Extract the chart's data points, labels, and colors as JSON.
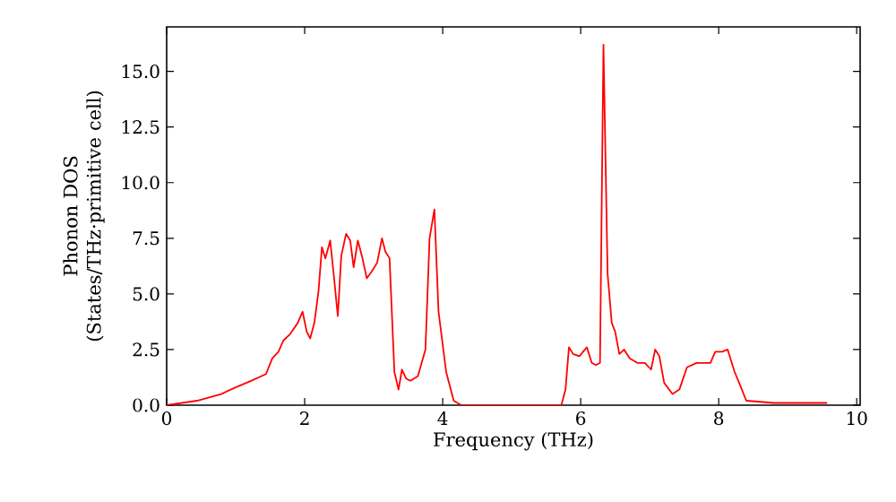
{
  "chart_data": {
    "type": "line",
    "xlabel": "Frequency (THz)",
    "ylabel": "Phonon DOS (States/THz·primitive cell)",
    "xlim": [
      0,
      10.05
    ],
    "ylim": [
      0,
      17
    ],
    "xticks": [
      0,
      2,
      4,
      6,
      8,
      10
    ],
    "yticks": [
      {
        "value": 0,
        "label": "0.0"
      },
      {
        "value": 2.5,
        "label": "2.5"
      },
      {
        "value": 5,
        "label": "5.0"
      },
      {
        "value": 7.5,
        "label": "7.5"
      },
      {
        "value": 10,
        "label": "10.0"
      },
      {
        "value": 12.5,
        "label": "12.5"
      },
      {
        "value": 15,
        "label": "15.0"
      }
    ],
    "grid": false,
    "series": [
      {
        "color": "#ff0000",
        "line_style": "solid",
        "x": [
          0,
          0.44,
          0.79,
          1.0,
          1.23,
          1.44,
          1.53,
          1.62,
          1.69,
          1.79,
          1.9,
          1.97,
          2.03,
          2.08,
          2.14,
          2.2,
          2.25,
          2.3,
          2.37,
          2.43,
          2.48,
          2.53,
          2.6,
          2.66,
          2.71,
          2.77,
          2.83,
          2.9,
          2.97,
          3.05,
          3.12,
          3.17,
          3.23,
          3.3,
          3.36,
          3.41,
          3.47,
          3.53,
          3.64,
          3.75,
          3.81,
          3.88,
          3.94,
          4.05,
          4.16,
          4.27,
          5.0,
          5.72,
          5.78,
          5.83,
          5.89,
          5.98,
          6.09,
          6.16,
          6.22,
          6.28,
          6.33,
          6.39,
          6.45,
          6.5,
          6.56,
          6.63,
          6.71,
          6.82,
          6.93,
          7.02,
          7.08,
          7.14,
          7.21,
          7.33,
          7.43,
          7.54,
          7.68,
          7.79,
          7.88,
          7.95,
          8.05,
          8.13,
          8.23,
          8.31,
          8.4,
          8.8,
          9.57
        ],
        "values": [
          0,
          0.2,
          0.5,
          0.8,
          1.1,
          1.4,
          2.1,
          2.4,
          2.9,
          3.2,
          3.7,
          4.2,
          3.3,
          3.0,
          3.7,
          5.1,
          7.1,
          6.6,
          7.4,
          5.6,
          4.0,
          6.7,
          7.7,
          7.4,
          6.2,
          7.4,
          6.7,
          5.7,
          6.0,
          6.4,
          7.5,
          6.9,
          6.6,
          1.5,
          0.7,
          1.6,
          1.2,
          1.1,
          1.3,
          2.5,
          7.5,
          8.8,
          4.2,
          1.5,
          0.2,
          0,
          0,
          0,
          0.7,
          2.6,
          2.3,
          2.2,
          2.6,
          1.9,
          1.8,
          1.9,
          16.2,
          5.9,
          3.7,
          3.3,
          2.3,
          2.5,
          2.1,
          1.9,
          1.9,
          1.6,
          2.5,
          2.2,
          1.0,
          0.5,
          0.7,
          1.7,
          1.9,
          1.9,
          1.9,
          2.4,
          2.4,
          2.5,
          1.5,
          0.9,
          0.2,
          0.1,
          0.1
        ]
      }
    ]
  }
}
